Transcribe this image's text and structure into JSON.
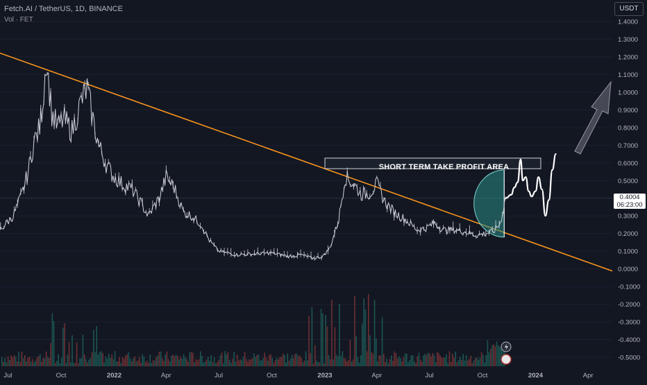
{
  "header": {
    "symbol_line": "Fetch.AI / TetherUS, 1D, BINANCE",
    "volume_line": "Vol · FET"
  },
  "price_axis": {
    "unit_label": "USDT",
    "last_price": "0.4004",
    "countdown": "06:23:00"
  },
  "annotations": {
    "take_profit": "SHORT TERM TAKE PROFIT AREA"
  },
  "colors": {
    "background": "#131722",
    "candles": "#d1d4dc",
    "trendline": "#f7941d",
    "teal_zone": "#2a8c87",
    "volume_up": "#1f6b63",
    "volume_down": "#8b3a3a"
  },
  "chart_data": {
    "type": "line",
    "title": "Fetch.AI / TetherUS, 1D, BINANCE",
    "xlabel": "",
    "ylabel": "USDT",
    "ylim": [
      -0.55,
      1.5
    ],
    "y_ticks": [
      "1.4000",
      "1.3000",
      "1.2000",
      "1.1000",
      "1.0000",
      "0.9000",
      "0.8000",
      "0.7000",
      "0.6000",
      "0.5000",
      "0.4000",
      "0.3000",
      "0.2000",
      "0.1000",
      "0.0000",
      "-0.1000",
      "-0.2000",
      "-0.3000",
      "-0.4000",
      "-0.5000"
    ],
    "y_tick_values": [
      1.4,
      1.3,
      1.2,
      1.1,
      1.0,
      0.9,
      0.8,
      0.7,
      0.6,
      0.5,
      0.4,
      0.3,
      0.2,
      0.1,
      0.0,
      -0.1,
      -0.2,
      -0.3,
      -0.4,
      -0.5
    ],
    "x_ticks": [
      "Jul",
      "Oct",
      "2022",
      "Apr",
      "Jul",
      "Oct",
      "2023",
      "Apr",
      "Jul",
      "Oct",
      "2024",
      "Apr"
    ],
    "x_tick_dates": [
      "2021-07-01",
      "2021-10-01",
      "2022-01-01",
      "2022-04-01",
      "2022-07-01",
      "2022-10-01",
      "2023-01-01",
      "2023-04-01",
      "2023-07-01",
      "2023-10-01",
      "2024-01-01",
      "2024-04-01"
    ],
    "series": [
      {
        "name": "",
        "x": [
          "2021-06-01",
          "2021-06-20",
          "2021-07-10",
          "2021-07-25",
          "2021-08-05",
          "2021-08-15",
          "2021-08-25",
          "2021-09-01",
          "2021-09-05",
          "2021-09-15",
          "2021-09-25",
          "2021-10-05",
          "2021-10-20",
          "2021-11-05",
          "2021-11-15",
          "2021-11-25",
          "2021-12-05",
          "2021-12-20",
          "2022-01-01",
          "2022-01-15",
          "2022-02-01",
          "2022-02-15",
          "2022-03-01",
          "2022-03-20",
          "2022-04-01",
          "2022-04-15",
          "2022-05-01",
          "2022-05-15",
          "2022-06-01",
          "2022-06-15",
          "2022-07-01",
          "2022-08-01",
          "2022-09-01",
          "2022-10-01",
          "2022-11-01",
          "2022-11-20",
          "2022-12-10",
          "2022-12-28",
          "2023-01-10",
          "2023-01-25",
          "2023-02-05",
          "2023-02-20",
          "2023-03-05",
          "2023-03-20",
          "2023-04-01",
          "2023-04-15",
          "2023-05-01",
          "2023-05-20",
          "2023-06-10",
          "2023-06-25",
          "2023-07-10",
          "2023-07-25",
          "2023-08-15",
          "2023-09-01",
          "2023-09-20",
          "2023-10-05",
          "2023-10-20",
          "2023-11-01",
          "2023-11-10"
        ],
        "values": [
          0.18,
          0.23,
          0.3,
          0.42,
          0.55,
          0.72,
          0.8,
          1.0,
          1.2,
          0.88,
          0.8,
          0.85,
          0.78,
          0.95,
          1.02,
          0.85,
          0.7,
          0.58,
          0.52,
          0.48,
          0.45,
          0.38,
          0.3,
          0.4,
          0.52,
          0.46,
          0.32,
          0.3,
          0.25,
          0.16,
          0.1,
          0.08,
          0.085,
          0.09,
          0.07,
          0.08,
          0.06,
          0.07,
          0.12,
          0.28,
          0.52,
          0.48,
          0.42,
          0.43,
          0.48,
          0.38,
          0.32,
          0.28,
          0.22,
          0.23,
          0.26,
          0.22,
          0.22,
          0.21,
          0.19,
          0.2,
          0.21,
          0.26,
          0.4
        ]
      },
      {
        "name": "",
        "x": [
          "2023-11-10",
          "2023-11-20",
          "2023-11-25",
          "2023-12-01",
          "2023-12-06",
          "2023-12-10",
          "2023-12-15",
          "2023-12-20",
          "2023-12-25",
          "2024-01-01",
          "2024-01-06",
          "2024-01-12",
          "2024-01-18",
          "2024-01-24",
          "2024-01-30",
          "2024-02-05"
        ],
        "values": [
          0.4,
          0.42,
          0.46,
          0.49,
          0.62,
          0.5,
          0.52,
          0.44,
          0.41,
          0.44,
          0.52,
          0.45,
          0.3,
          0.39,
          0.56,
          0.65
        ]
      }
    ],
    "trendline": {
      "x": [
        "2021-06-01",
        "2024-05-20"
      ],
      "values": [
        1.24,
        -0.02
      ]
    },
    "take_profit_zone": {
      "x": [
        "2023-01-01",
        "2024-01-10"
      ],
      "y_range": [
        0.567,
        0.627
      ],
      "label": "SHORT TERM TAKE PROFIT AREA"
    },
    "volume_label": "Vol · FET",
    "grid": false,
    "legend": "none"
  }
}
